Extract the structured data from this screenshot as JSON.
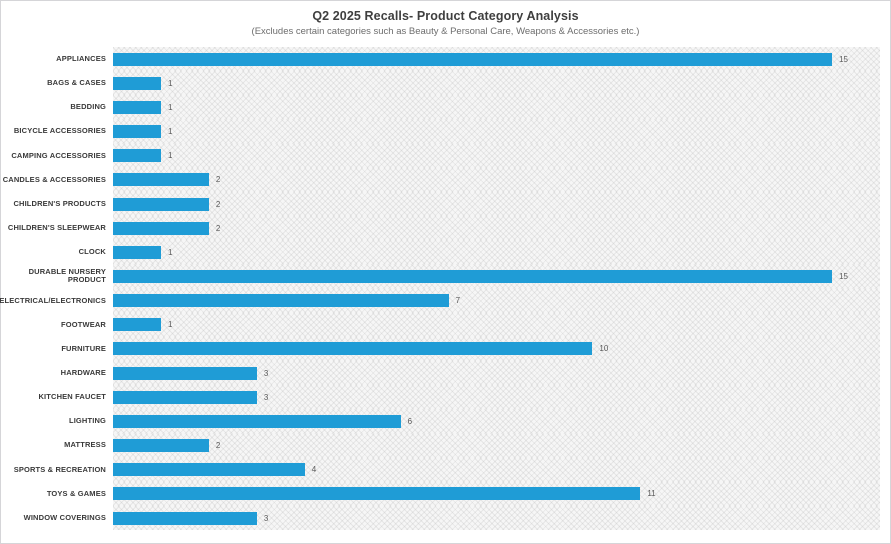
{
  "header": {
    "title": "Q2 2025 Recalls- Product Category Analysis",
    "subtitle": "(Excludes certain categories such as Beauty & Personal Care, Weapons & Accessories etc.)"
  },
  "colors": {
    "bar": "#1F9CD6",
    "title_text": "#3f3f3f",
    "subtitle_text": "#6d6d6d",
    "category_text": "#3a3a3a",
    "value_text": "#595959",
    "frame_border": "#d5d5d8",
    "plot_background": "#f6f6f6"
  },
  "chart_data": {
    "type": "bar",
    "orientation": "horizontal",
    "title": "Q2 2025 Recalls- Product Category Analysis",
    "subtitle": "(Excludes certain categories such as Beauty & Personal Care, Weapons & Accessories etc.)",
    "xlabel": "",
    "ylabel": "",
    "xlim": [
      0,
      16
    ],
    "grid": false,
    "legend": "none",
    "data_labels": true,
    "bar_color": "#1F9CD6",
    "categories": [
      "APPLIANCES",
      "BAGS & CASES",
      "BEDDING",
      "BICYCLE ACCESSORIES",
      "CAMPING ACCESSORIES",
      "CANDLES & ACCESSORIES",
      "CHILDREN'S PRODUCTS",
      "CHILDREN'S SLEEPWEAR",
      "CLOCK",
      "DURABLE NURSERY PRODUCT",
      "ELECTRICAL/ELECTRONICS",
      "FOOTWEAR",
      "FURNITURE",
      "HARDWARE",
      "KITCHEN FAUCET",
      "LIGHTING",
      "MATTRESS",
      "SPORTS & RECREATION",
      "TOYS & GAMES",
      "WINDOW COVERINGS"
    ],
    "values": [
      15,
      1,
      1,
      1,
      1,
      2,
      2,
      2,
      1,
      15,
      7,
      1,
      10,
      3,
      3,
      6,
      2,
      4,
      11,
      3
    ]
  }
}
